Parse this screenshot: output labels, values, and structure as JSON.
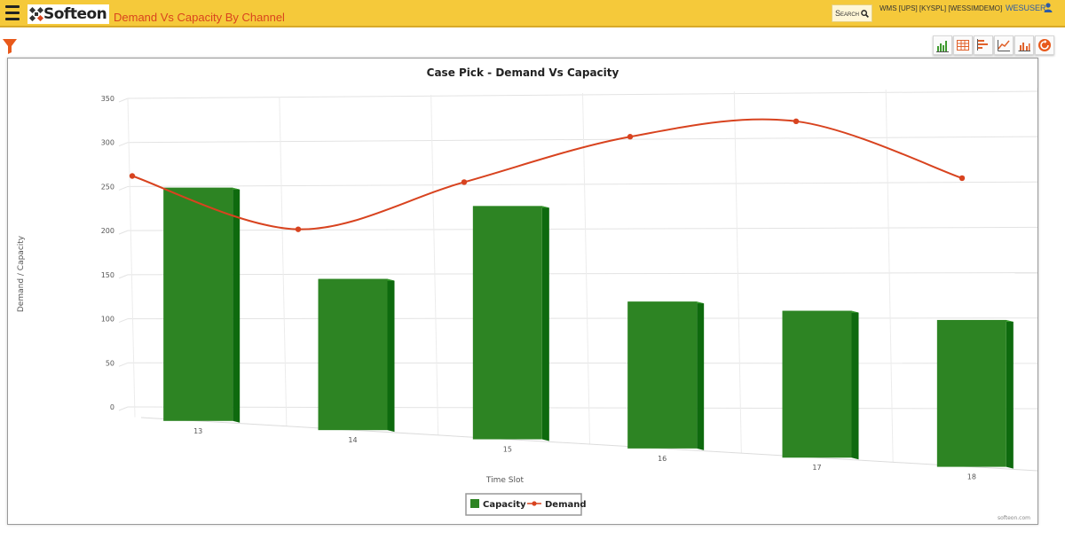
{
  "header": {
    "logo_text": "Softeon",
    "app_title": "Demand Vs Capacity By Channel",
    "search_label": "Search",
    "wms_info": "WMS [UPS] [KYSPL] [WESSIMDEMO]",
    "user_name": "WESUSER"
  },
  "toolbar": {
    "icons": [
      "column-chart-icon",
      "table-icon",
      "bar-chart-icon",
      "line-chart-icon",
      "grouped-chart-icon",
      "refresh-icon"
    ]
  },
  "colors": {
    "header_bg": "#f5c93a",
    "title_color": "#d9441e",
    "capacity_bar": "#2d8423",
    "demand_line": "#d8431f"
  },
  "chart_data": {
    "type": "bar",
    "title": "Case Pick - Demand Vs Capacity",
    "xlabel": "Time Slot",
    "ylabel": "Demand / Capacity",
    "categories": [
      "13",
      "14",
      "15",
      "16",
      "17",
      "18"
    ],
    "yticks": [
      0,
      50,
      100,
      150,
      200,
      250,
      300,
      350
    ],
    "ylim": [
      0,
      350
    ],
    "grid": true,
    "legend_position": "bottom-center",
    "credit": "softeon.com",
    "series": [
      {
        "name": "Capacity",
        "type": "bar",
        "values": [
          270,
          175,
          270,
          170,
          170,
          170
        ]
      },
      {
        "name": "Demand",
        "type": "line",
        "values": [
          262,
          200,
          252,
          302,
          318,
          252
        ]
      }
    ]
  }
}
